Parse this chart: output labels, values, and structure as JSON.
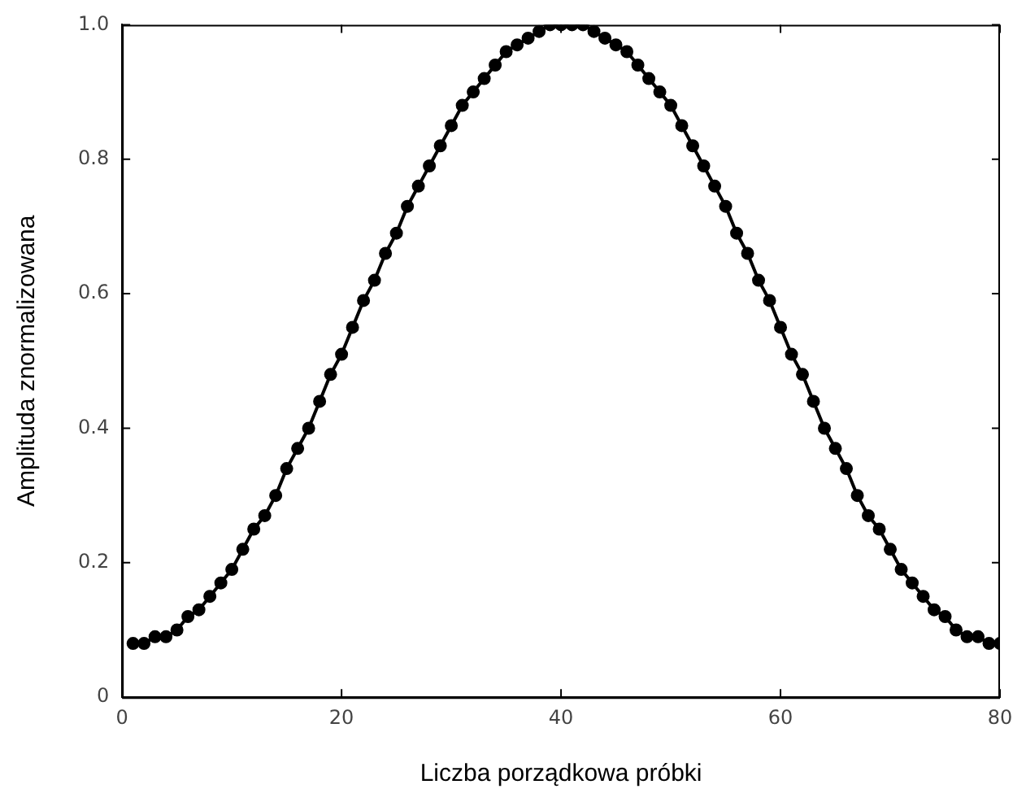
{
  "chart_data": {
    "type": "line",
    "xlabel": "Liczba porządkowa próbki",
    "ylabel": "Amplituda znormalizowana",
    "x": [
      1,
      2,
      3,
      4,
      5,
      6,
      7,
      8,
      9,
      10,
      11,
      12,
      13,
      14,
      15,
      16,
      17,
      18,
      19,
      20,
      21,
      22,
      23,
      24,
      25,
      26,
      27,
      28,
      29,
      30,
      31,
      32,
      33,
      34,
      35,
      36,
      37,
      38,
      39,
      40,
      41,
      42,
      43,
      44,
      45,
      46,
      47,
      48,
      49,
      50,
      51,
      52,
      53,
      54,
      55,
      56,
      57,
      58,
      59,
      60,
      61,
      62,
      63,
      64,
      65,
      66,
      67,
      68,
      69,
      70,
      71,
      72,
      73,
      74,
      75,
      76,
      77,
      78,
      79,
      80
    ],
    "series": [
      {
        "color": "#000000",
        "values": [
          0.08,
          0.08,
          0.09,
          0.09,
          0.1,
          0.12,
          0.13,
          0.15,
          0.17,
          0.19,
          0.22,
          0.25,
          0.27,
          0.3,
          0.34,
          0.37,
          0.4,
          0.44,
          0.48,
          0.51,
          0.55,
          0.59,
          0.62,
          0.66,
          0.69,
          0.73,
          0.76,
          0.79,
          0.82,
          0.85,
          0.88,
          0.9,
          0.92,
          0.94,
          0.96,
          0.97,
          0.98,
          0.99,
          1.0,
          1.0,
          1.0,
          1.0,
          0.99,
          0.98,
          0.97,
          0.96,
          0.94,
          0.92,
          0.9,
          0.88,
          0.85,
          0.82,
          0.79,
          0.76,
          0.73,
          0.69,
          0.66,
          0.62,
          0.59,
          0.55,
          0.51,
          0.48,
          0.44,
          0.4,
          0.37,
          0.34,
          0.3,
          0.27,
          0.25,
          0.22,
          0.19,
          0.17,
          0.15,
          0.13,
          0.12,
          0.1,
          0.09,
          0.09,
          0.08,
          0.08
        ]
      }
    ],
    "xlim": [
      0,
      80
    ],
    "xticks": [
      0,
      20,
      40,
      60,
      80
    ],
    "ylim": [
      0,
      1
    ],
    "yticks": [
      0,
      0.2,
      0.4,
      0.6,
      0.8,
      {
        "value": 1,
        "label": "1.0"
      }
    ],
    "grid": false,
    "legend": false,
    "marker": "circle",
    "line_style": "solid"
  }
}
